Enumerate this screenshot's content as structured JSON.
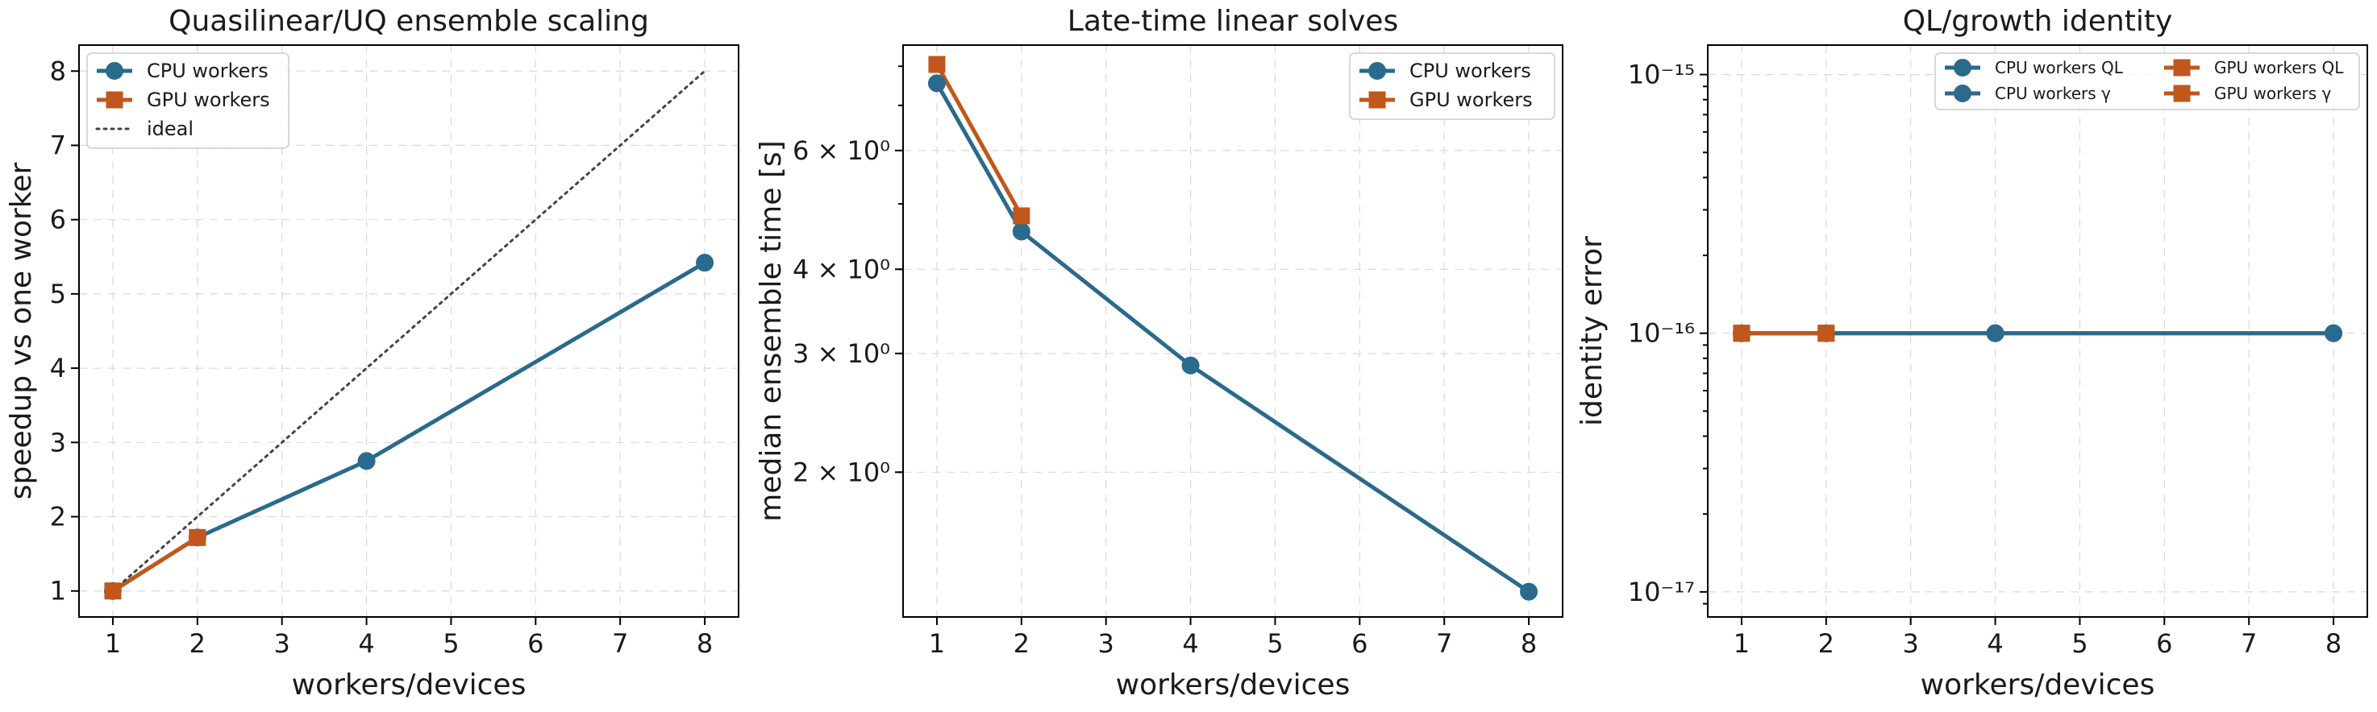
{
  "colors": {
    "cpu": "#2a6a8c",
    "gpu": "#c1571d",
    "ideal": "#444444"
  },
  "chart_data": [
    {
      "type": "line",
      "title": "Quasilinear/UQ ensemble scaling",
      "xlabel": "workers/devices",
      "ylabel": "speedup vs one worker",
      "xlim": [
        0.6,
        8.4
      ],
      "ylim": [
        0.65,
        8.35
      ],
      "yscale": "linear",
      "xticks": [
        1,
        2,
        3,
        4,
        5,
        6,
        7,
        8
      ],
      "yticks": [
        1,
        2,
        3,
        4,
        5,
        6,
        7,
        8
      ],
      "grid": true,
      "legend": "top-left",
      "series": [
        {
          "name": "CPU workers",
          "marker": "circle",
          "color": "#2a6a8c",
          "x": [
            1,
            2,
            4,
            8
          ],
          "y": [
            1.0,
            1.72,
            2.75,
            5.42
          ]
        },
        {
          "name": "GPU workers",
          "marker": "square",
          "color": "#c1571d",
          "x": [
            1,
            2
          ],
          "y": [
            1.0,
            1.72
          ]
        },
        {
          "name": "ideal",
          "marker": "none",
          "dash": "dotted",
          "color": "#444444",
          "x": [
            1,
            8
          ],
          "y": [
            1,
            8
          ]
        }
      ]
    },
    {
      "type": "line",
      "title": "Late-time linear solves",
      "xlabel": "workers/devices",
      "ylabel": "median ensemble time [s]",
      "xlim": [
        0.6,
        8.4
      ],
      "ylim": [
        1.22,
        8.6
      ],
      "yscale": "log",
      "xticks": [
        1,
        2,
        3,
        4,
        5,
        6,
        7,
        8
      ],
      "yticks": [
        2,
        3,
        4,
        6
      ],
      "yticklabels": [
        "2 × 10⁰",
        "3 × 10⁰",
        "4 × 10⁰",
        "6 × 10⁰"
      ],
      "grid": true,
      "legend": "top-right",
      "series": [
        {
          "name": "CPU workers",
          "marker": "circle",
          "color": "#2a6a8c",
          "x": [
            1,
            2,
            4,
            8
          ],
          "y": [
            7.55,
            4.55,
            2.88,
            1.33
          ]
        },
        {
          "name": "GPU workers",
          "marker": "square",
          "color": "#c1571d",
          "x": [
            1,
            2
          ],
          "y": [
            8.05,
            4.8
          ]
        }
      ]
    },
    {
      "type": "line",
      "title": "QL/growth identity",
      "xlabel": "workers/devices",
      "ylabel": "identity error",
      "xlim": [
        0.6,
        8.4
      ],
      "ylim": [
        8e-18,
        1.3e-15
      ],
      "yscale": "log",
      "xticks": [
        1,
        2,
        3,
        4,
        5,
        6,
        7,
        8
      ],
      "yticks": [
        1e-17,
        1e-16,
        1e-15
      ],
      "yticklabels": [
        "10⁻¹⁷",
        "10⁻¹⁶",
        "10⁻¹⁵"
      ],
      "grid": true,
      "legend": "top-right, 2 columns",
      "series": [
        {
          "name": "CPU workers QL",
          "marker": "circle",
          "color": "#2a6a8c",
          "x": [
            1,
            2,
            4,
            8
          ],
          "y": [
            1e-16,
            1e-16,
            1e-16,
            1e-16
          ]
        },
        {
          "name": "CPU workers γ",
          "marker": "circle",
          "color": "#2a6a8c",
          "x": [
            1,
            2,
            4,
            8
          ],
          "y": [
            1e-16,
            1e-16,
            1e-16,
            1e-16
          ]
        },
        {
          "name": "GPU workers QL",
          "marker": "square",
          "color": "#c1571d",
          "x": [
            1,
            2
          ],
          "y": [
            1e-16,
            1e-16
          ]
        },
        {
          "name": "GPU workers γ",
          "marker": "square",
          "color": "#c1571d",
          "x": [
            1,
            2
          ],
          "y": [
            1e-16,
            1e-16
          ]
        }
      ]
    }
  ]
}
